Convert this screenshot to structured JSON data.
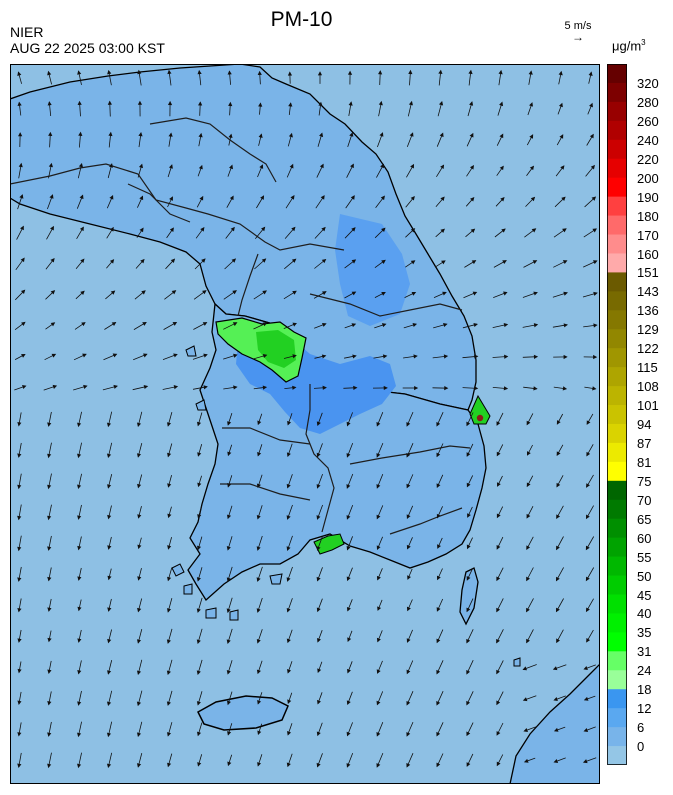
{
  "title": "PM-10",
  "agency": "NIER",
  "timestamp": "AUG 22 2025 03:00 KST",
  "wind_reference": {
    "label": "5 m/s",
    "arrow": "→"
  },
  "unit": {
    "base": "μg/m",
    "exp": "3"
  },
  "legend": {
    "ticks": [
      "320",
      "280",
      "260",
      "240",
      "220",
      "200",
      "190",
      "180",
      "170",
      "160",
      "151",
      "143",
      "136",
      "129",
      "122",
      "115",
      "108",
      "101",
      "94",
      "87",
      "81",
      "75",
      "70",
      "65",
      "60",
      "55",
      "50",
      "45",
      "40",
      "35",
      "31",
      "24",
      "18",
      "12",
      "6",
      "0"
    ],
    "colors": [
      "#650000",
      "#7d0000",
      "#980000",
      "#b00000",
      "#cc0000",
      "#e60000",
      "#ff0000",
      "#ff4040",
      "#ff6a6a",
      "#ff8c8c",
      "#ffaaaa",
      "#6b5a00",
      "#786a00",
      "#857800",
      "#928700",
      "#a09600",
      "#aea500",
      "#bcb400",
      "#cac300",
      "#dad300",
      "#ecea00",
      "#ffff00",
      "#006600",
      "#007a00",
      "#008f00",
      "#00a300",
      "#00b800",
      "#00cc00",
      "#00e000",
      "#00f000",
      "#00ff00",
      "#66ff66",
      "#99ff99",
      "#3a96f0",
      "#5aa8f0",
      "#78b4ea",
      "#94c6e6"
    ],
    "band_groups": {
      "ochre_start_index": 11,
      "green_start_index": 22,
      "blue_start_index": 33
    }
  },
  "map_colors": {
    "sea": "#8ec0e4",
    "land_base": "#7ab4e8",
    "land_mid": "#5a9ef0",
    "land_high": "#3c86ee",
    "green_light": "#66ff66",
    "green": "#22dd22",
    "hotspot": "#8b1a1a",
    "coast": "#000000",
    "borders": "#2b2b2b"
  }
}
